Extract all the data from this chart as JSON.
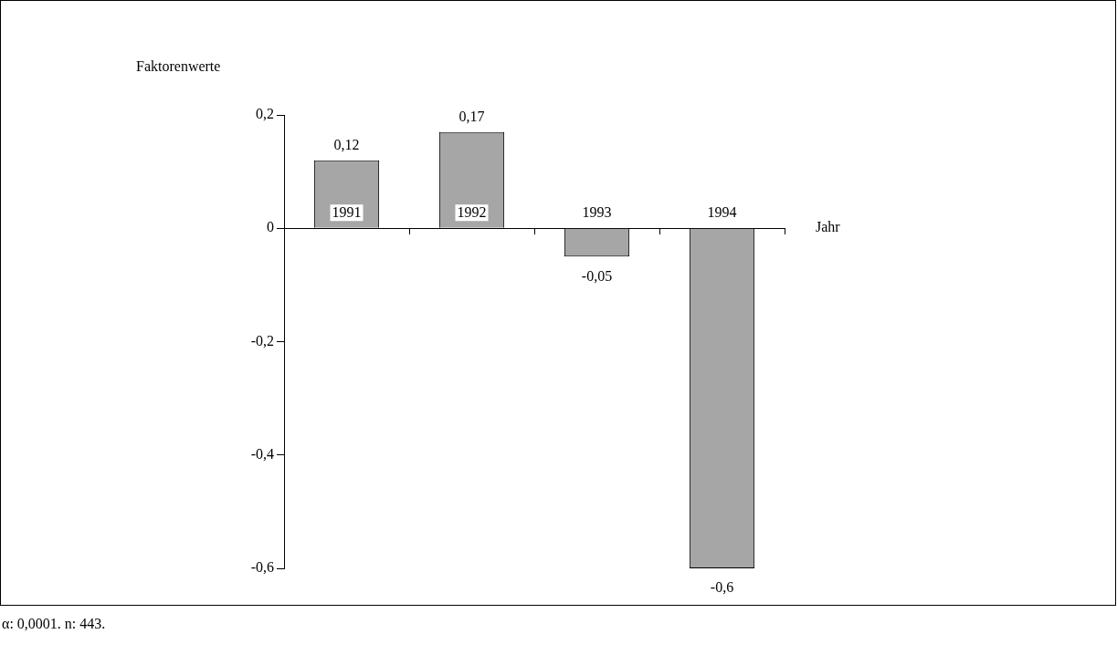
{
  "chart_data": {
    "type": "bar",
    "ylabel": "Faktorenwerte",
    "xlabel": "Jahr",
    "categories": [
      "1991",
      "1992",
      "1993",
      "1994"
    ],
    "values": [
      0.12,
      0.17,
      -0.05,
      -0.6
    ],
    "value_labels": [
      "0,12",
      "0,17",
      "-0,05",
      "-0,6"
    ],
    "color": "#a6a6a6",
    "ylim": [
      -0.6,
      0.2
    ],
    "yticks": [
      {
        "value": 0.2,
        "label": "0,2"
      },
      {
        "value": 0,
        "label": "0"
      },
      {
        "value": -0.2,
        "label": "-0,2"
      },
      {
        "value": -0.4,
        "label": "-0,4"
      },
      {
        "value": -0.6,
        "label": "-0,6"
      }
    ],
    "annotations": [
      "α: 0,0001. n: 443."
    ]
  }
}
